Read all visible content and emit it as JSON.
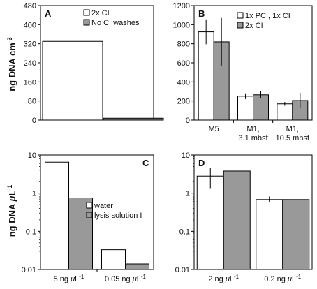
{
  "y_labels": {
    "top_prefix": "ng DNA cm",
    "top_sup": "-3",
    "bottom_prefix": "ng DNA ",
    "bottom_mu": "μ",
    "bottom_L": "L",
    "bottom_sup": "-1"
  },
  "colors": {
    "series1": "#ffffff",
    "series2": "#999999",
    "edge": "#000000"
  },
  "chart_data": [
    {
      "panel": "A",
      "type": "bar",
      "scale": "linear",
      "ylim": [
        0,
        480
      ],
      "yticks": [
        0,
        80,
        160,
        240,
        320,
        400,
        480
      ],
      "ytick_labels": [
        "0",
        "80",
        "160",
        "240",
        "320",
        "400",
        "480"
      ],
      "categories": [
        ""
      ],
      "legend_position": "top-right",
      "series": [
        {
          "name": "2x CI",
          "values": [
            330
          ]
        },
        {
          "name": "No CI washes",
          "values": [
            8
          ]
        }
      ]
    },
    {
      "panel": "B",
      "type": "bar",
      "scale": "linear",
      "ylim": [
        0,
        1200
      ],
      "yticks": [
        0,
        200,
        400,
        600,
        800,
        1000,
        1200
      ],
      "ytick_labels": [
        "0",
        "200",
        "400",
        "600",
        "800",
        "1000",
        "1200"
      ],
      "categories": [
        [
          "M5"
        ],
        [
          "M1,",
          "3.1 mbsf"
        ],
        [
          "M1,",
          "10.5 mbsf"
        ]
      ],
      "legend_position": "top-right",
      "series": [
        {
          "name": "1x PCI, 1x CI",
          "values": [
            925,
            250,
            170
          ],
          "errors": [
            130,
            30,
            20
          ]
        },
        {
          "name": "2x CI",
          "values": [
            820,
            265,
            205
          ],
          "errors": [
            250,
            35,
            80
          ]
        }
      ]
    },
    {
      "panel": "C",
      "type": "bar",
      "scale": "log",
      "ylim": [
        0.01,
        10
      ],
      "yticks": [
        0.01,
        0.1,
        1,
        10
      ],
      "ytick_labels": [
        "0.01",
        "0.1",
        "1",
        "10"
      ],
      "categories": [
        {
          "pre": "5 ng ",
          "mu": "μ",
          "L": "L",
          "sup": "-1"
        },
        {
          "pre": "0.05 ng ",
          "mu": "μ",
          "L": "L",
          "sup": "-1"
        }
      ],
      "legend_position": "center-right",
      "series": [
        {
          "name": "water",
          "values": [
            6.5,
            0.033
          ]
        },
        {
          "name": "lysis solution I",
          "values": [
            0.75,
            0.014
          ]
        }
      ]
    },
    {
      "panel": "D",
      "type": "bar",
      "scale": "log",
      "ylim": [
        0.01,
        10
      ],
      "yticks": [
        0.01,
        0.1,
        1,
        10
      ],
      "ytick_labels": [
        "0.01",
        "0.1",
        "1",
        "10"
      ],
      "categories": [
        {
          "pre": "2 ng ",
          "mu": "μ",
          "L": "L",
          "sup": "-1"
        },
        {
          "pre": "0.2 ng ",
          "mu": "μ",
          "L": "L",
          "sup": "-1"
        }
      ],
      "series": [
        {
          "name": "",
          "values": [
            2.8,
            0.68
          ],
          "errors": [
            [
              1.3,
              4.5
            ],
            [
              0.57,
              0.82
            ]
          ]
        },
        {
          "name": "",
          "values": [
            3.8,
            0.68
          ]
        }
      ]
    }
  ]
}
